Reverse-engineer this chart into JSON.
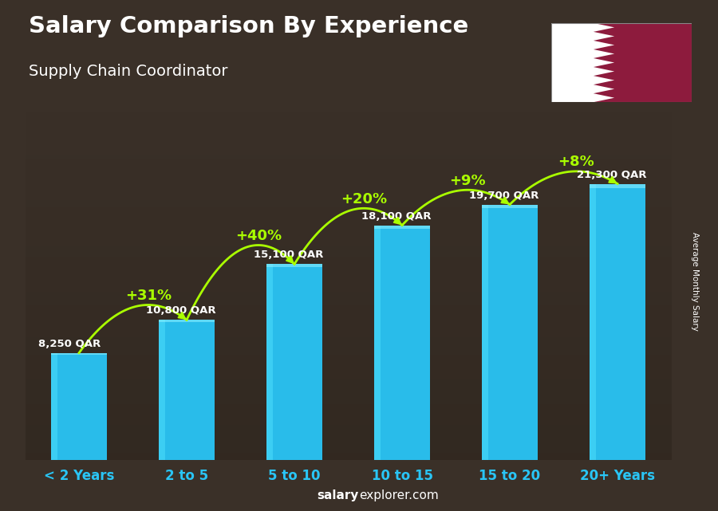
{
  "title": "Salary Comparison By Experience",
  "subtitle": "Supply Chain Coordinator",
  "categories": [
    "< 2 Years",
    "2 to 5",
    "5 to 10",
    "10 to 15",
    "15 to 20",
    "20+ Years"
  ],
  "values": [
    8250,
    10800,
    15100,
    18100,
    19700,
    21300
  ],
  "value_labels": [
    "8,250 QAR",
    "10,800 QAR",
    "15,100 QAR",
    "18,100 QAR",
    "19,700 QAR",
    "21,300 QAR"
  ],
  "pct_changes": [
    "+31%",
    "+40%",
    "+20%",
    "+9%",
    "+8%"
  ],
  "bar_color": "#29C5F6",
  "bar_color2": "#1AAFDF",
  "title_color": "#FFFFFF",
  "subtitle_color": "#FFFFFF",
  "label_color": "#FFFFFF",
  "pct_color": "#AAFF00",
  "footer_text_bold": "salary",
  "footer_text_normal": "explorer.com",
  "ylabel": "Average Monthly Salary",
  "bg_color": "#3a3028",
  "ylim": [
    0,
    27000
  ],
  "figsize": [
    9.0,
    6.41
  ],
  "dpi": 100,
  "bar_width": 0.52,
  "xtick_color": "#29C5F6",
  "flag_maroon": "#8D1B3D",
  "flag_white": "#FFFFFF",
  "flag_teeth": 9
}
